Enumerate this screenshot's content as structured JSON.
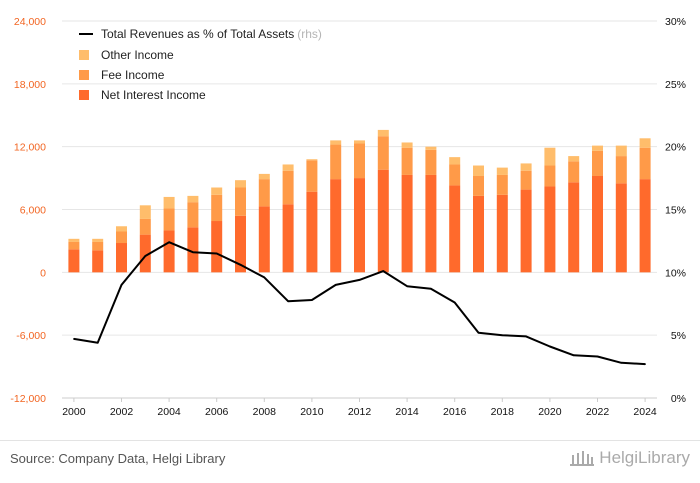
{
  "chart_data": {
    "type": "bar",
    "stacked": true,
    "x": [
      "2000",
      "2001",
      "2002",
      "2003",
      "2004",
      "2005",
      "2006",
      "2007",
      "2008",
      "2009",
      "2010",
      "2011",
      "2012",
      "2013",
      "2014",
      "2015",
      "2016",
      "2017",
      "2018",
      "2019",
      "2020",
      "2021",
      "2022",
      "2023",
      "2024"
    ],
    "x_tick_labels": [
      "2000",
      "2002",
      "2004",
      "2006",
      "2008",
      "2010",
      "2012",
      "2014",
      "2016",
      "2018",
      "2020",
      "2022",
      "2024"
    ],
    "series": [
      {
        "name": "Net Interest Income",
        "color": "#ff6a2c",
        "axis": "left",
        "values": [
          2200,
          2100,
          2800,
          3600,
          4000,
          4300,
          4900,
          5400,
          6300,
          6500,
          7700,
          8900,
          9000,
          9800,
          9300,
          9300,
          8300,
          7300,
          7400,
          7900,
          8200,
          8600,
          9200,
          8500,
          8900
        ]
      },
      {
        "name": "Fee Income",
        "color": "#ff9a48",
        "axis": "left",
        "values": [
          700,
          800,
          1100,
          1500,
          2100,
          2400,
          2500,
          2700,
          2600,
          3200,
          3000,
          3300,
          3300,
          3200,
          2600,
          2400,
          2000,
          1900,
          1900,
          1800,
          2000,
          2000,
          2400,
          2600,
          3000
        ]
      },
      {
        "name": "Other Income",
        "color": "#ffbd6b",
        "axis": "left",
        "values": [
          300,
          300,
          500,
          1300,
          1100,
          600,
          700,
          700,
          500,
          600,
          100,
          400,
          300,
          600,
          500,
          300,
          700,
          1000,
          700,
          700,
          1700,
          500,
          500,
          1000,
          900
        ]
      },
      {
        "name": "Total Revenues as % of Total Assets",
        "color": "#000000",
        "axis": "right",
        "type": "line",
        "values": [
          4.7,
          4.4,
          9.0,
          11.3,
          12.4,
          11.6,
          11.5,
          10.6,
          9.6,
          7.7,
          7.8,
          9.0,
          9.4,
          10.1,
          8.9,
          8.7,
          7.6,
          5.2,
          5.0,
          4.9,
          4.1,
          3.4,
          3.3,
          2.8,
          2.7
        ]
      }
    ],
    "y_left": {
      "min": -12000,
      "max": 24000,
      "ticks": [
        "-12,000",
        "-6,000",
        "0",
        "6,000",
        "12,000",
        "18,000",
        "24,000"
      ],
      "tick_values": [
        -12000,
        -6000,
        0,
        6000,
        12000,
        18000,
        24000
      ],
      "color": "#f26522"
    },
    "y_right": {
      "min": 0,
      "max": 30,
      "ticks": [
        "0%",
        "5%",
        "10%",
        "15%",
        "20%",
        "25%",
        "30%"
      ],
      "tick_values": [
        0,
        5,
        10,
        15,
        20,
        25,
        30
      ]
    },
    "grid": true,
    "legend_position": "top-left"
  },
  "legend": {
    "line_label": "Total Revenues as % of Total Assets",
    "line_suffix": "(rhs)",
    "other_label": "Other Income",
    "fee_label": "Fee Income",
    "nii_label": "Net Interest Income"
  },
  "footer": {
    "source": "Source: Company Data, Helgi Library",
    "logo_text": "HelgiLibrary"
  }
}
